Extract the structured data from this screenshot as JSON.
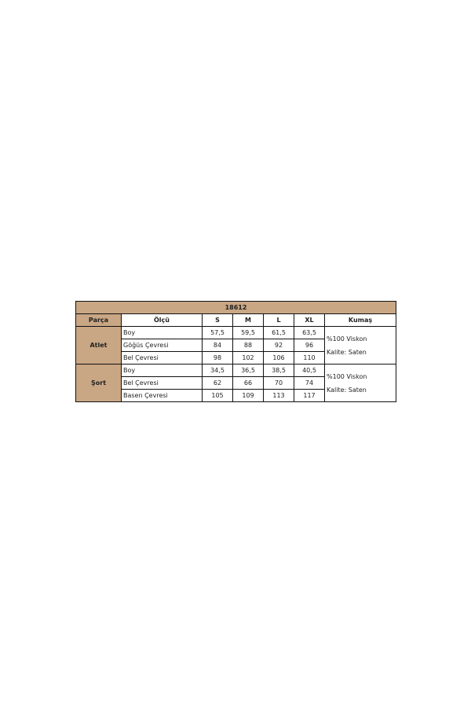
{
  "title": "18612",
  "colors": {
    "header_bg": "#c9a684",
    "border": "#111111"
  },
  "headers": [
    "Parça",
    "Ölçü",
    "S",
    "M",
    "L",
    "XL",
    "Kumaş"
  ],
  "groups": [
    {
      "name": "Atlet",
      "rows": [
        {
          "measure": "Boy",
          "values": [
            "57,5",
            "59,5",
            "61,5",
            "63,5"
          ]
        },
        {
          "measure": "Göğüs Çevresi",
          "values": [
            "84",
            "88",
            "92",
            "96"
          ]
        },
        {
          "measure": "Bel Çevresi",
          "values": [
            "98",
            "102",
            "106",
            "110"
          ]
        }
      ],
      "fabric": [
        "%100 Viskon",
        "Kalite: Saten"
      ]
    },
    {
      "name": "Şort",
      "rows": [
        {
          "measure": "Boy",
          "values": [
            "34,5",
            "36,5",
            "38,5",
            "40,5"
          ]
        },
        {
          "measure": "Bel Çevresi",
          "values": [
            "62",
            "66",
            "70",
            "74"
          ]
        },
        {
          "measure": "Basen Çevresi",
          "values": [
            "105",
            "109",
            "113",
            "117"
          ]
        }
      ],
      "fabric": [
        "%100 Viskon",
        "Kalite: Saten"
      ]
    }
  ]
}
